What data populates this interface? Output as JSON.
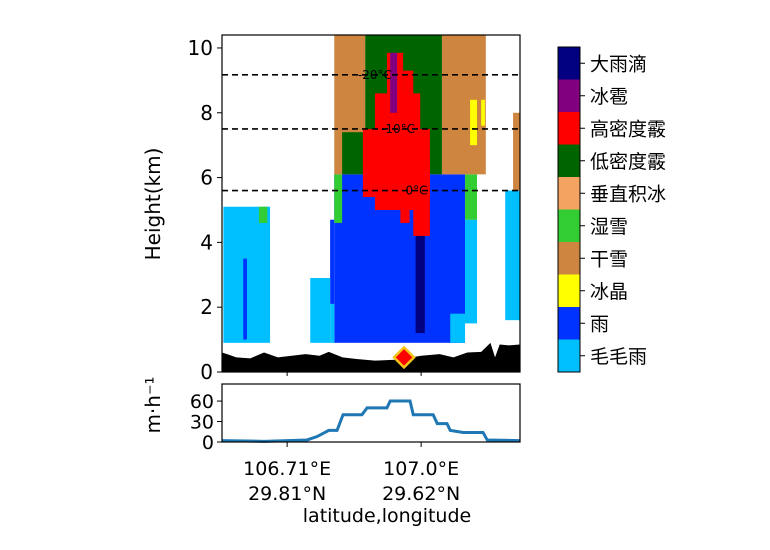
{
  "chart_data": [
    {
      "type": "heatmap",
      "title": "",
      "ylabel": "Height(km)",
      "ylim": [
        0,
        10.4
      ],
      "xlim": [
        106.569,
        107.214
      ],
      "yticks": [
        0,
        2,
        4,
        6,
        8,
        10
      ],
      "grid": false,
      "categories": [
        {
          "key": "heavy_rain",
          "label": "大雨滴",
          "color": "#000080"
        },
        {
          "key": "hail",
          "label": "冰雹",
          "color": "#800080"
        },
        {
          "key": "hd_graupel",
          "label": "高密度霰",
          "color": "#ff0000"
        },
        {
          "key": "ld_graupel",
          "label": "低密度霰",
          "color": "#006400"
        },
        {
          "key": "vertical_ice",
          "label": "垂直积冰",
          "color": "#f4a460"
        },
        {
          "key": "wet_snow",
          "label": "湿雪",
          "color": "#32cd32"
        },
        {
          "key": "dry_snow",
          "label": "干雪",
          "color": "#cd853f"
        },
        {
          "key": "ice_crystal",
          "label": "冰晶",
          "color": "#ffff00"
        },
        {
          "key": "rain",
          "label": "雨",
          "color": "#0033ff"
        },
        {
          "key": "drizzle",
          "label": "毛毛雨",
          "color": "#00bfff"
        }
      ],
      "regions": [
        [
          "rain",
          106.812,
          107.095,
          0.9,
          6.1
        ],
        [
          "rain",
          106.803,
          106.812,
          2.1,
          4.7
        ],
        [
          "drizzle",
          106.572,
          106.673,
          0.9,
          5.1
        ],
        [
          "drizzle",
          106.76,
          106.803,
          0.9,
          2.9
        ],
        [
          "drizzle",
          106.803,
          106.812,
          0.9,
          2.1
        ],
        [
          "drizzle",
          107.095,
          107.121,
          1.5,
          4.7
        ],
        [
          "drizzle",
          107.063,
          107.095,
          0.9,
          1.8
        ],
        [
          "drizzle",
          107.182,
          107.214,
          1.6,
          5.6
        ],
        [
          "rain",
          106.615,
          106.623,
          1.0,
          3.5
        ],
        [
          "heavy_rain",
          106.988,
          107.008,
          1.2,
          4.5
        ],
        [
          "wet_snow",
          106.812,
          106.829,
          4.6,
          6.1
        ],
        [
          "wet_snow",
          107.095,
          107.121,
          4.7,
          6.1
        ],
        [
          "wet_snow",
          106.649,
          106.667,
          4.6,
          5.1
        ],
        [
          "dry_snow",
          106.812,
          106.879,
          6.1,
          10.4
        ],
        [
          "dry_snow",
          107.045,
          107.14,
          6.1,
          10.4
        ],
        [
          "dry_snow",
          107.199,
          107.214,
          5.6,
          8.0
        ],
        [
          "ld_graupel",
          106.879,
          107.045,
          6.1,
          10.4
        ],
        [
          "ld_graupel",
          106.829,
          106.879,
          6.1,
          7.4
        ],
        [
          "hd_graupel",
          106.874,
          107.019,
          5.4,
          7.5
        ],
        [
          "hd_graupel",
          106.9,
          106.998,
          5.0,
          8.6
        ],
        [
          "hd_graupel",
          106.926,
          106.961,
          6.5,
          9.85
        ],
        [
          "hd_graupel",
          106.961,
          106.983,
          7.0,
          9.3
        ],
        [
          "hd_graupel",
          106.983,
          107.019,
          4.2,
          6.5
        ],
        [
          "hd_graupel",
          106.955,
          106.975,
          4.6,
          5.5
        ],
        [
          "hail",
          106.933,
          106.948,
          8.0,
          9.85
        ],
        [
          "ice_crystal",
          107.106,
          107.121,
          7.0,
          8.4
        ],
        [
          "ice_crystal",
          107.13,
          107.138,
          7.6,
          8.4
        ]
      ],
      "isotherms": [
        {
          "label": "-20°C",
          "height": 9.17,
          "label_lon": 106.9
        },
        {
          "label": "-10°C",
          "height": 7.5,
          "label_lon": 106.95
        },
        {
          "label": "0°C",
          "height": 5.6,
          "label_lon": 106.99
        }
      ],
      "terrain": {
        "lon": [
          106.569,
          106.58,
          106.6,
          106.63,
          106.66,
          106.69,
          106.72,
          106.75,
          106.78,
          106.8,
          106.83,
          106.86,
          106.9,
          106.95,
          107.0,
          107.04,
          107.07,
          107.1,
          107.13,
          107.15,
          107.16,
          107.17,
          107.19,
          107.214
        ],
        "height": [
          0.6,
          0.55,
          0.45,
          0.42,
          0.6,
          0.45,
          0.5,
          0.55,
          0.5,
          0.62,
          0.45,
          0.4,
          0.35,
          0.38,
          0.5,
          0.55,
          0.45,
          0.6,
          0.62,
          0.9,
          0.45,
          0.85,
          0.82,
          0.85
        ]
      },
      "marker": {
        "lon": 106.963,
        "height": 0.45,
        "label": ""
      }
    },
    {
      "type": "line",
      "ylabel": "m·h⁻¹",
      "ylim": [
        0,
        85
      ],
      "yticks": [
        0,
        30,
        60
      ],
      "xlabel": "latitude,longitude",
      "xticks": [
        {
          "lon": 106.71,
          "label1": "106.71°E",
          "label2": "29.81°N"
        },
        {
          "lon": 107.0,
          "label1": "107.0°E",
          "label2": "29.62°N"
        }
      ],
      "series": [
        {
          "name": "rain_rate",
          "color": "#1f77b4",
          "x": [
            106.569,
            106.66,
            106.753,
            106.775,
            106.8,
            106.818,
            106.831,
            106.872,
            106.883,
            106.926,
            106.933,
            106.976,
            106.983,
            107.026,
            107.035,
            107.056,
            107.063,
            107.091,
            107.134,
            107.143,
            107.214
          ],
          "y": [
            2,
            1,
            3,
            8,
            17,
            17,
            40,
            40,
            50,
            50,
            60,
            60,
            40,
            40,
            27,
            27,
            17,
            14,
            14,
            3,
            2
          ]
        }
      ]
    }
  ]
}
